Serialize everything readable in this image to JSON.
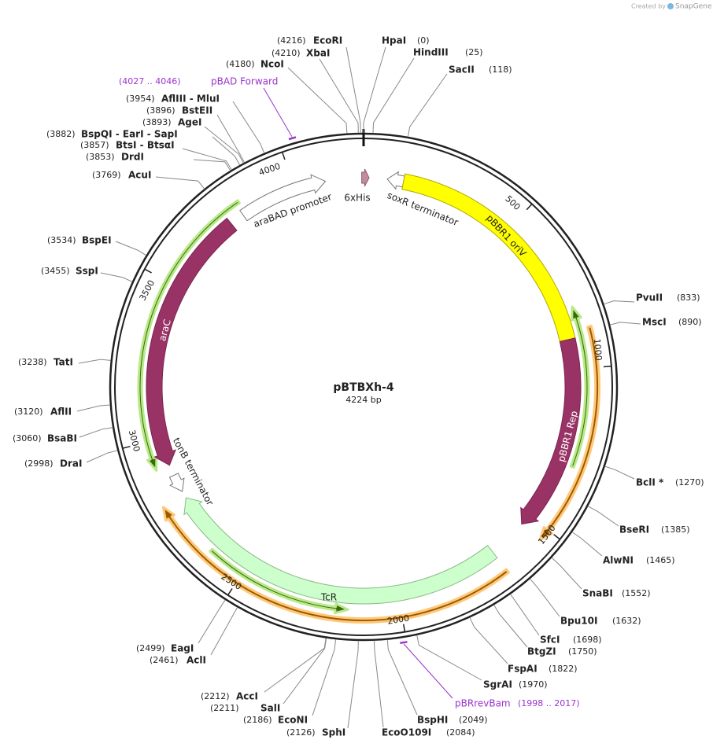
{
  "plasmid": {
    "name": "pBTBXh-4",
    "size": "4224 bp"
  },
  "watermark": {
    "prefix": "Created by",
    "brand": "SnapGene"
  },
  "enzymes": [
    {
      "name": "EcoRI",
      "position": "(4216)"
    },
    {
      "name": "XbaI",
      "position": "(4210)"
    },
    {
      "name": "NcoI",
      "position": "(4180)"
    },
    {
      "name": "HpaI",
      "position": "(0)"
    },
    {
      "name": "HindIII",
      "position": "(25)"
    },
    {
      "name": "SacII",
      "position": "(118)"
    },
    {
      "name": "AflIII - MluI",
      "position": "(3954)"
    },
    {
      "name": "BstEII",
      "position": "(3896)"
    },
    {
      "name": "AgeI",
      "position": "(3893)"
    },
    {
      "name": "BspQI - EarI - SapI",
      "position": "(3882)"
    },
    {
      "name": "BtsI - BtsαI",
      "position": "(3857)"
    },
    {
      "name": "DrdI",
      "position": "(3853)"
    },
    {
      "name": "AcuI",
      "position": "(3769)"
    },
    {
      "name": "BspEI",
      "position": "(3534)"
    },
    {
      "name": "SspI",
      "position": "(3455)"
    },
    {
      "name": "TatI",
      "position": "(3238)"
    },
    {
      "name": "AflII",
      "position": "(3120)"
    },
    {
      "name": "BsaBI",
      "position": "(3060)"
    },
    {
      "name": "DraI",
      "position": "(2998)"
    },
    {
      "name": "EagI",
      "position": "(2499)"
    },
    {
      "name": "AclI",
      "position": "(2461)"
    },
    {
      "name": "AccI",
      "position": "(2212)"
    },
    {
      "name": "SalI",
      "position": "(2211)"
    },
    {
      "name": "EcoNI",
      "position": "(2186)"
    },
    {
      "name": "SphI",
      "position": "(2126)"
    },
    {
      "name": "EcoO109I",
      "position": "(2084)"
    },
    {
      "name": "BspHI",
      "position": "(2049)"
    },
    {
      "name": "SgrAI",
      "position": "(1970)"
    },
    {
      "name": "FspAI",
      "position": "(1822)"
    },
    {
      "name": "BtgZI",
      "position": "(1750)"
    },
    {
      "name": "SfcI",
      "position": "(1698)"
    },
    {
      "name": "Bpu10I",
      "position": "(1632)"
    },
    {
      "name": "SnaBI",
      "position": "(1552)"
    },
    {
      "name": "AlwNI",
      "position": "(1465)"
    },
    {
      "name": "BseRI",
      "position": "(1385)"
    },
    {
      "name": "BclI *",
      "position": "(1270)"
    },
    {
      "name": "MscI",
      "position": "(890)"
    },
    {
      "name": "PvuII",
      "position": "(833)"
    }
  ],
  "primers": [
    {
      "name": "pBAD Forward",
      "range": "(4027 .. 4046)"
    },
    {
      "name": "pBRrevBam",
      "range": "(1998 .. 2017)"
    }
  ],
  "features": [
    {
      "name": "araBAD promoter"
    },
    {
      "name": "6xHis"
    },
    {
      "name": "soxR terminator"
    },
    {
      "name": "pBBR1 oriV"
    },
    {
      "name": "pBBR1 Rep"
    },
    {
      "name": "araC"
    },
    {
      "name": "tonB terminator"
    },
    {
      "name": "TcR"
    }
  ],
  "ruler": [
    500,
    1000,
    1500,
    2000,
    2500,
    3000,
    3500,
    4000
  ]
}
